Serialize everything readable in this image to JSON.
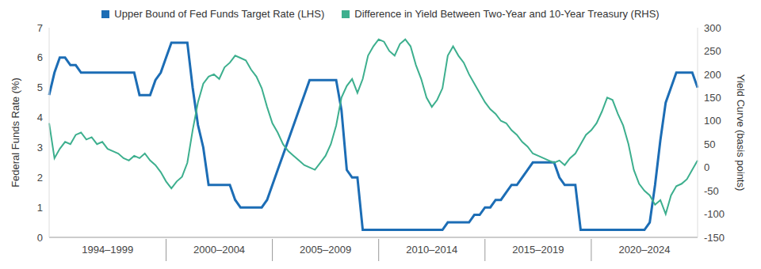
{
  "chart_data": {
    "type": "line",
    "legend": "top",
    "grid": false,
    "ylabel": "Federal Funds Rate (%)",
    "y2label": "Yield Curve (basis points)",
    "categories": [
      null,
      null,
      null,
      null,
      null,
      null,
      null,
      null,
      null,
      null,
      null,
      "1994–1999",
      null,
      null,
      null,
      null,
      null,
      null,
      null,
      null,
      null,
      null,
      null,
      null,
      null,
      null,
      null,
      null,
      null,
      null,
      null,
      null,
      "2000–2004",
      null,
      null,
      null,
      null,
      null,
      null,
      null,
      null,
      null,
      null,
      null,
      null,
      null,
      null,
      null,
      null,
      null,
      null,
      null,
      "2005–2009",
      null,
      null,
      null,
      null,
      null,
      null,
      null,
      null,
      null,
      null,
      null,
      null,
      null,
      null,
      null,
      null,
      null,
      null,
      null,
      "2010–2014",
      null,
      null,
      null,
      null,
      null,
      null,
      null,
      null,
      null,
      null,
      null,
      null,
      null,
      null,
      null,
      null,
      null,
      null,
      null,
      "2015–2019",
      null,
      null,
      null,
      null,
      null,
      null,
      null,
      null,
      null,
      null,
      null,
      null,
      null,
      null,
      null,
      null,
      null,
      null,
      null,
      "2020–2024",
      null,
      null,
      null,
      null,
      null,
      null,
      null,
      null,
      null,
      null
    ],
    "series": [
      {
        "name": "Upper Bound of Fed Funds Target Rate (LHS)",
        "color": "#1c6db5",
        "values": [
          4.75,
          5.5,
          6.0,
          6.0,
          5.75,
          5.75,
          5.5,
          5.5,
          5.5,
          5.5,
          5.5,
          5.5,
          5.5,
          5.5,
          5.5,
          5.5,
          5.5,
          4.75,
          4.75,
          4.75,
          5.25,
          5.5,
          6.0,
          6.5,
          6.5,
          6.5,
          6.5,
          5.0,
          3.75,
          3.0,
          1.75,
          1.75,
          1.75,
          1.75,
          1.75,
          1.25,
          1.0,
          1.0,
          1.0,
          1.0,
          1.0,
          1.25,
          1.75,
          2.25,
          2.75,
          3.25,
          3.75,
          4.25,
          4.75,
          5.25,
          5.25,
          5.25,
          5.25,
          5.25,
          5.25,
          4.25,
          2.25,
          2.0,
          2.0,
          0.25,
          0.25,
          0.25,
          0.25,
          0.25,
          0.25,
          0.25,
          0.25,
          0.25,
          0.25,
          0.25,
          0.25,
          0.25,
          0.25,
          0.25,
          0.25,
          0.5,
          0.5,
          0.5,
          0.5,
          0.5,
          0.75,
          0.75,
          1.0,
          1.0,
          1.25,
          1.25,
          1.5,
          1.75,
          1.75,
          2.0,
          2.25,
          2.5,
          2.5,
          2.5,
          2.5,
          2.5,
          2.0,
          1.75,
          1.75,
          1.75,
          0.25,
          0.25,
          0.25,
          0.25,
          0.25,
          0.25,
          0.25,
          0.25,
          0.25,
          0.25,
          0.25,
          0.25,
          0.25,
          0.5,
          1.75,
          3.25,
          4.5,
          5.0,
          5.5,
          5.5,
          5.5,
          5.5,
          5.0
        ]
      },
      {
        "name": "Difference in Yield Between Two-Year and 10-Year Treasury (RHS)",
        "color": "#3daf8e",
        "axis": "y2",
        "values": [
          95,
          20,
          40,
          55,
          50,
          70,
          75,
          60,
          65,
          50,
          55,
          40,
          35,
          30,
          20,
          15,
          25,
          20,
          30,
          15,
          5,
          -10,
          -30,
          -45,
          -30,
          -20,
          10,
          80,
          140,
          180,
          195,
          200,
          190,
          215,
          225,
          240,
          235,
          230,
          210,
          195,
          170,
          130,
          95,
          75,
          50,
          35,
          25,
          15,
          5,
          0,
          -5,
          10,
          25,
          50,
          90,
          150,
          175,
          190,
          160,
          190,
          240,
          260,
          275,
          270,
          250,
          240,
          265,
          275,
          260,
          220,
          190,
          150,
          130,
          145,
          170,
          240,
          260,
          240,
          225,
          200,
          180,
          160,
          140,
          125,
          115,
          100,
          95,
          80,
          70,
          55,
          45,
          30,
          25,
          20,
          15,
          10,
          15,
          5,
          20,
          30,
          50,
          70,
          80,
          95,
          120,
          150,
          145,
          115,
          90,
          50,
          -5,
          -35,
          -50,
          -60,
          -80,
          -70,
          -100,
          -60,
          -40,
          -35,
          -25,
          -5,
          15
        ]
      }
    ],
    "ylim": [
      0,
      7
    ],
    "yticks": [
      0,
      1,
      2,
      3,
      4,
      5,
      6,
      7
    ],
    "y2lim": [
      -150,
      300
    ],
    "y2ticks": [
      -150,
      -100,
      -50,
      0,
      50,
      100,
      150,
      200,
      250,
      300
    ]
  }
}
